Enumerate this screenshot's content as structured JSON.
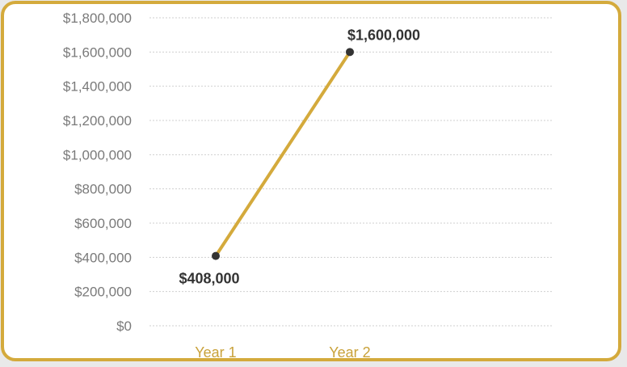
{
  "chart_data": {
    "type": "line",
    "categories": [
      "Year 1",
      "Year 2"
    ],
    "series": [
      {
        "values": [
          408000,
          1600000
        ],
        "data_labels": [
          "$408,000",
          "$1,600,000"
        ]
      }
    ],
    "ylim": [
      0,
      1800000
    ],
    "yticks": [
      0,
      200000,
      400000,
      600000,
      800000,
      1000000,
      1200000,
      1400000,
      1600000,
      1800000
    ],
    "ytick_labels": [
      "$0",
      "$200,000",
      "$400,000",
      "$600,000",
      "$800,000",
      "$1,000,000",
      "$1,200,000",
      "$1,400,000",
      "$1,600,000",
      "$1,800,000"
    ],
    "grid": true,
    "title": "",
    "xlabel": "",
    "ylabel": ""
  },
  "colors": {
    "line": "#d4aa3c",
    "marker": "#333333",
    "axis_text": "#7a7a7a",
    "category_text": "#c9a23a",
    "data_label": "#333333",
    "grid": "#cfcfcf",
    "frame": "#d4aa3c"
  }
}
